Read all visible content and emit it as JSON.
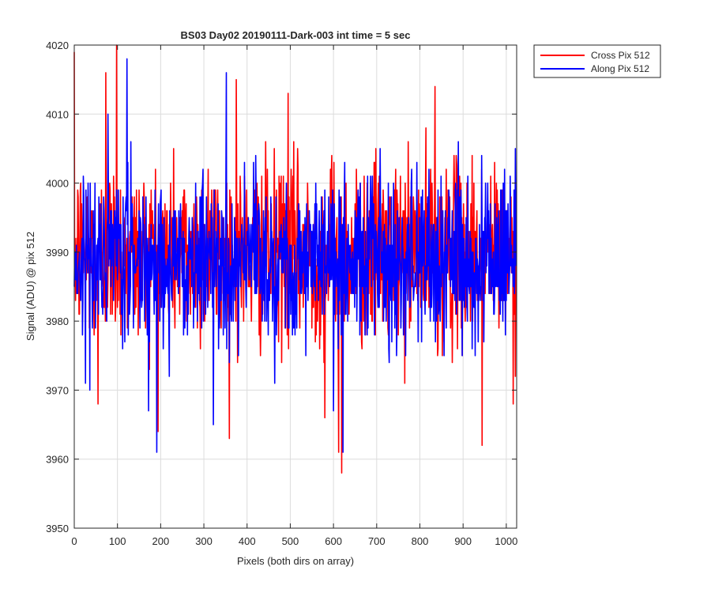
{
  "chart_data": {
    "type": "line",
    "title": "BS03 Day02 20190111-Dark-003 int time = 5 sec",
    "xlabel": "Pixels (both dirs on array)",
    "ylabel": "Signal (ADU) @ pix 512",
    "xlim": [
      0,
      1024
    ],
    "ylim": [
      3950,
      4020
    ],
    "xticks": [
      0,
      100,
      200,
      300,
      400,
      500,
      600,
      700,
      800,
      900,
      1000
    ],
    "yticks": [
      3950,
      3960,
      3970,
      3980,
      3990,
      4000,
      4010,
      4020
    ],
    "grid": true,
    "legend_position": "outside-top-right",
    "series": [
      {
        "name": "Cross Pix 512",
        "color": "#ff0000",
        "mean": 3990,
        "noise_sigma": 6.5,
        "n_points": 1024,
        "notable_points": [
          [
            0,
            4019
          ],
          [
            55,
            3968
          ],
          [
            73,
            4016
          ],
          [
            98,
            4020
          ],
          [
            310,
            4002
          ],
          [
            375,
            4015
          ],
          [
            495,
            4013
          ],
          [
            580,
            3966
          ],
          [
            612,
            3961
          ],
          [
            619,
            3958
          ],
          [
            835,
            4014
          ],
          [
            944,
            3962
          ],
          [
            1016,
            3968
          ]
        ]
      },
      {
        "name": "Along Pix 512",
        "color": "#0000ff",
        "mean": 3989,
        "noise_sigma": 6.0,
        "n_points": 1024,
        "notable_points": [
          [
            122,
            4018
          ],
          [
            191,
            3961
          ],
          [
            322,
            3965
          ],
          [
            352,
            4016
          ],
          [
            600,
            3967
          ],
          [
            622,
            3961
          ]
        ]
      }
    ]
  }
}
